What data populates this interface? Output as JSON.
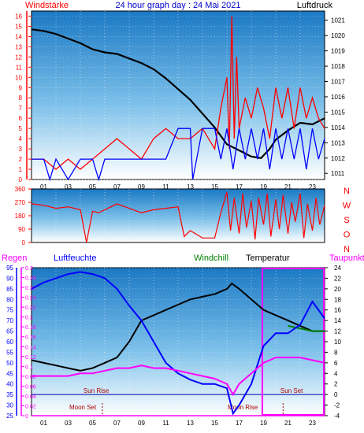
{
  "chart_data": [
    {
      "type": "line",
      "title": "24 hour graph day : 24 Mai 2021",
      "left_label": "Windstärke",
      "right_label": "Luftdruck",
      "x_ticks": [
        "01",
        "03",
        "05",
        "07",
        "09",
        "11",
        "13",
        "15",
        "17",
        "19",
        "21",
        "23"
      ],
      "y_left_ticks": [
        "0",
        "1",
        "2",
        "3",
        "4",
        "5",
        "6",
        "7",
        "8",
        "9",
        "10",
        "11",
        "12",
        "13",
        "14",
        "15",
        "16"
      ],
      "y_right_ticks": [
        "1011",
        "1012",
        "1013",
        "1014",
        "1015",
        "1016",
        "1017",
        "1018",
        "1019",
        "1020",
        "1021"
      ],
      "ylim_left": [
        0,
        16.5
      ],
      "ylim_right": [
        1010.6,
        1021.6
      ],
      "x_range": [
        0,
        24
      ],
      "series": [
        {
          "color": "#000000",
          "axis": "right",
          "points": [
            [
              0,
              1020.4
            ],
            [
              1,
              1020.3
            ],
            [
              2,
              1020.1
            ],
            [
              3,
              1019.8
            ],
            [
              4,
              1019.5
            ],
            [
              5,
              1019.1
            ],
            [
              6,
              1018.9
            ],
            [
              7,
              1018.8
            ],
            [
              8,
              1018.5
            ],
            [
              9,
              1018.2
            ],
            [
              10,
              1017.8
            ],
            [
              11,
              1017.2
            ],
            [
              12,
              1016.5
            ],
            [
              13,
              1015.8
            ],
            [
              14,
              1014.9
            ],
            [
              15,
              1014.0
            ],
            [
              16,
              1012.9
            ],
            [
              17,
              1012.5
            ],
            [
              18,
              1012.1
            ],
            [
              18.8,
              1012.0
            ],
            [
              19.5,
              1012.6
            ],
            [
              20,
              1013.2
            ],
            [
              21,
              1013.8
            ],
            [
              22,
              1014.3
            ],
            [
              23,
              1014.2
            ],
            [
              24,
              1014.6
            ]
          ]
        },
        {
          "color": "#ff0000",
          "axis": "left",
          "points": [
            [
              0,
              2
            ],
            [
              1,
              2
            ],
            [
              2,
              1
            ],
            [
              3,
              2
            ],
            [
              4,
              1
            ],
            [
              5,
              2
            ],
            [
              6,
              3
            ],
            [
              7,
              4
            ],
            [
              8,
              3
            ],
            [
              9,
              2
            ],
            [
              10,
              4
            ],
            [
              11,
              5
            ],
            [
              12,
              4
            ],
            [
              13,
              4
            ],
            [
              14,
              5
            ],
            [
              15,
              3
            ],
            [
              15.5,
              7
            ],
            [
              16,
              10
            ],
            [
              16.2,
              3
            ],
            [
              16.4,
              16
            ],
            [
              16.6,
              4
            ],
            [
              16.8,
              12
            ],
            [
              17,
              5
            ],
            [
              17.5,
              8
            ],
            [
              18,
              6
            ],
            [
              18.5,
              9
            ],
            [
              19,
              7
            ],
            [
              19.5,
              4
            ],
            [
              20,
              9
            ],
            [
              20.5,
              6
            ],
            [
              21,
              9
            ],
            [
              21.5,
              5
            ],
            [
              22,
              9
            ],
            [
              22.5,
              6
            ],
            [
              23,
              8
            ],
            [
              23.5,
              6
            ],
            [
              24,
              5
            ]
          ]
        },
        {
          "color": "#0000ff",
          "axis": "left",
          "points": [
            [
              0,
              2
            ],
            [
              1,
              2
            ],
            [
              1.5,
              0
            ],
            [
              2,
              2
            ],
            [
              3,
              0
            ],
            [
              4,
              2
            ],
            [
              5,
              2
            ],
            [
              5.5,
              0
            ],
            [
              6,
              2
            ],
            [
              7,
              2
            ],
            [
              8,
              2
            ],
            [
              9,
              2
            ],
            [
              10,
              2
            ],
            [
              11,
              2
            ],
            [
              12,
              5
            ],
            [
              13,
              5
            ],
            [
              13.2,
              0
            ],
            [
              14,
              5
            ],
            [
              15,
              5
            ],
            [
              15.5,
              2
            ],
            [
              16,
              5
            ],
            [
              16.5,
              1
            ],
            [
              17,
              5
            ],
            [
              17.5,
              2
            ],
            [
              18,
              5
            ],
            [
              18.5,
              2
            ],
            [
              19,
              5
            ],
            [
              19.5,
              1
            ],
            [
              20,
              5
            ],
            [
              20.5,
              2
            ],
            [
              21,
              5
            ],
            [
              21.5,
              2
            ],
            [
              22,
              5
            ],
            [
              22.5,
              1
            ],
            [
              23,
              5
            ],
            [
              23.5,
              2
            ],
            [
              24,
              4
            ]
          ]
        }
      ]
    },
    {
      "type": "line",
      "left_label": "",
      "right_labels": [
        "N",
        "W",
        "S",
        "O",
        "N"
      ],
      "y_left_ticks": [
        "360",
        "270",
        "180",
        "90",
        "0"
      ],
      "ylim": [
        0,
        360
      ],
      "x_range": [
        0,
        24
      ],
      "series": [
        {
          "color": "#ff0000",
          "points": [
            [
              0,
              260
            ],
            [
              1,
              250
            ],
            [
              2,
              230
            ],
            [
              3,
              240
            ],
            [
              4,
              220
            ],
            [
              4.5,
              0
            ],
            [
              5,
              210
            ],
            [
              5.5,
              200
            ],
            [
              6,
              220
            ],
            [
              7,
              260
            ],
            [
              8,
              230
            ],
            [
              9,
              200
            ],
            [
              10,
              220
            ],
            [
              11,
              230
            ],
            [
              12,
              240
            ],
            [
              12.5,
              40
            ],
            [
              13,
              80
            ],
            [
              14,
              30
            ],
            [
              15,
              30
            ],
            [
              15.5,
              200
            ],
            [
              16,
              340
            ],
            [
              16.3,
              80
            ],
            [
              16.6,
              300
            ],
            [
              17,
              60
            ],
            [
              17.3,
              330
            ],
            [
              17.6,
              100
            ],
            [
              18,
              280
            ],
            [
              18.3,
              20
            ],
            [
              18.6,
              300
            ],
            [
              19,
              120
            ],
            [
              19.3,
              330
            ],
            [
              19.6,
              40
            ],
            [
              20,
              290
            ],
            [
              20.3,
              90
            ],
            [
              20.6,
              320
            ],
            [
              21,
              60
            ],
            [
              21.3,
              270
            ],
            [
              21.6,
              140
            ],
            [
              22,
              330
            ],
            [
              22.3,
              30
            ],
            [
              22.6,
              260
            ],
            [
              23,
              80
            ],
            [
              23.3,
              300
            ],
            [
              23.6,
              120
            ],
            [
              24,
              250
            ]
          ]
        }
      ]
    },
    {
      "type": "line",
      "legend": [
        "Regen",
        "Luftfeuchte",
        "Windchill",
        "Temperatur",
        "Taupunkt"
      ],
      "legend_colors": [
        "#ff00ff",
        "#0000ff",
        "#008000",
        "#000000",
        "#ff00ff"
      ],
      "y_far_left_ticks": [
        "0",
        "0.02",
        "0.04",
        "0.06",
        "0.08",
        "0.1",
        "0.12",
        "0.14",
        "0.16",
        "0.18",
        "0.2",
        "0.22",
        "0.24",
        "0.26",
        "0.28",
        "0.3"
      ],
      "y_left_ticks": [
        "25",
        "30",
        "35",
        "40",
        "45",
        "50",
        "55",
        "60",
        "65",
        "70",
        "75",
        "80",
        "85",
        "90",
        "95"
      ],
      "y_right_ticks": [
        "-4",
        "-2",
        "0",
        "2",
        "4",
        "6",
        "8",
        "10",
        "12",
        "14",
        "16",
        "18",
        "20",
        "22",
        "24"
      ],
      "ylim_far_left": [
        0,
        0.3
      ],
      "ylim_left": [
        25,
        95
      ],
      "ylim_right": [
        -4,
        24
      ],
      "x_range": [
        0,
        24
      ],
      "annotations": [
        "Sun Rise",
        "Sun Set",
        "Moon Set",
        "Moon Rise"
      ],
      "series": [
        {
          "name": "Temperatur",
          "color": "#000000",
          "points": [
            [
              0,
              6.5
            ],
            [
              1,
              6
            ],
            [
              2,
              5.5
            ],
            [
              3,
              5
            ],
            [
              4,
              4.5
            ],
            [
              5,
              5
            ],
            [
              6,
              6
            ],
            [
              7,
              7
            ],
            [
              8,
              10
            ],
            [
              9,
              14
            ],
            [
              10,
              15
            ],
            [
              11,
              16
            ],
            [
              12,
              17
            ],
            [
              13,
              18
            ],
            [
              14,
              18.5
            ],
            [
              15,
              19
            ],
            [
              16,
              20
            ],
            [
              16.4,
              21
            ],
            [
              17,
              20
            ],
            [
              18,
              18
            ],
            [
              19,
              16
            ],
            [
              20,
              15
            ],
            [
              21,
              14
            ],
            [
              22,
              13
            ],
            [
              23,
              12
            ],
            [
              24,
              12
            ]
          ]
        },
        {
          "name": "Windchill",
          "color": "#008000",
          "points": [
            [
              21,
              13
            ],
            [
              22,
              12.5
            ],
            [
              23,
              12
            ],
            [
              24,
              12
            ]
          ]
        },
        {
          "name": "Luftfeuchte",
          "color": "#0000ff",
          "points": [
            [
              0,
              85
            ],
            [
              1,
              88
            ],
            [
              2,
              90
            ],
            [
              3,
              92
            ],
            [
              4,
              93
            ],
            [
              5,
              92
            ],
            [
              6,
              90
            ],
            [
              7,
              85
            ],
            [
              8,
              77
            ],
            [
              9,
              70
            ],
            [
              10,
              60
            ],
            [
              11,
              50
            ],
            [
              12,
              45
            ],
            [
              13,
              42
            ],
            [
              14,
              40
            ],
            [
              15,
              40
            ],
            [
              16,
              38
            ],
            [
              16.5,
              26
            ],
            [
              17,
              30
            ],
            [
              18,
              40
            ],
            [
              19,
              58
            ],
            [
              20,
              64
            ],
            [
              21,
              64
            ],
            [
              22,
              68
            ],
            [
              23,
              79
            ],
            [
              24,
              71
            ]
          ]
        },
        {
          "name": "Taupunkt",
          "color": "#ff00ff",
          "points": [
            [
              0,
              3.5
            ],
            [
              1,
              3.5
            ],
            [
              2,
              3.5
            ],
            [
              3,
              3.5
            ],
            [
              4,
              4
            ],
            [
              5,
              4
            ],
            [
              6,
              4.5
            ],
            [
              7,
              5
            ],
            [
              8,
              5
            ],
            [
              9,
              5.5
            ],
            [
              10,
              5
            ],
            [
              11,
              5
            ],
            [
              12,
              4.5
            ],
            [
              13,
              4
            ],
            [
              14,
              3.5
            ],
            [
              15,
              3
            ],
            [
              16,
              2
            ],
            [
              16.5,
              0
            ],
            [
              17,
              2
            ],
            [
              18,
              4
            ],
            [
              19,
              6
            ],
            [
              20,
              7
            ],
            [
              21,
              7
            ],
            [
              22,
              7
            ],
            [
              23,
              6.5
            ],
            [
              24,
              6
            ]
          ]
        },
        {
          "name": "Regen",
          "color": "#ff00ff",
          "points": [
            [
              0,
              0
            ],
            [
              24,
              0
            ]
          ]
        }
      ]
    }
  ]
}
